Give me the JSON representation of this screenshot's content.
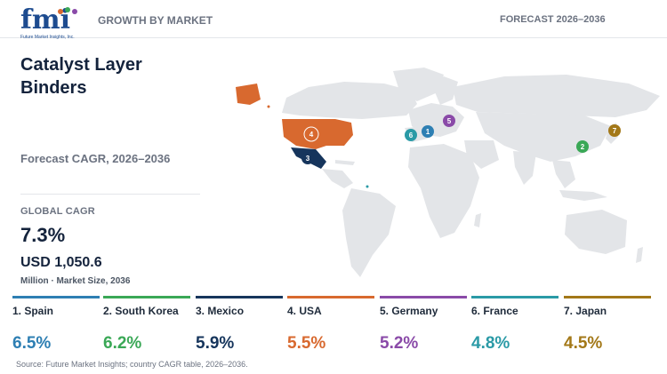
{
  "header": {
    "logo_text": "fmi",
    "logo_tagline": "Future Market Insights, Inc.",
    "section_label": "GROWTH BY MARKET",
    "forecast_label": "FORECAST 2026–2036"
  },
  "summary": {
    "title": "Catalyst Layer Binders",
    "subtitle": "Forecast CAGR, 2026–2036",
    "global_cagr_label": "GLOBAL CAGR",
    "global_cagr_value": "7.3%",
    "market_size_value": "USD 1,050.6",
    "market_size_unit": "Million · Market Size, 2036"
  },
  "colors": {
    "highlight": "#d8692f",
    "land": "#e3e5e8",
    "title": "#14233c"
  },
  "countries": [
    {
      "rank": "1",
      "label": "1. Spain",
      "cagr": "6.5%",
      "color": "#2e7fb3"
    },
    {
      "rank": "2",
      "label": "2. South Korea",
      "cagr": "6.2%",
      "color": "#3aa856"
    },
    {
      "rank": "3",
      "label": "3. Mexico",
      "cagr": "5.9%",
      "color": "#16355c"
    },
    {
      "rank": "4",
      "label": "4. USA",
      "cagr": "5.5%",
      "color": "#d8692f"
    },
    {
      "rank": "5",
      "label": "5. Germany",
      "cagr": "5.2%",
      "color": "#8a4aa8"
    },
    {
      "rank": "6",
      "label": "6. France",
      "cagr": "4.8%",
      "color": "#2a9aa6"
    },
    {
      "rank": "7",
      "label": "7. Japan",
      "cagr": "4.5%",
      "color": "#a37818"
    }
  ],
  "source": "Source: Future Market Insights; country CAGR table, 2026–2036."
}
